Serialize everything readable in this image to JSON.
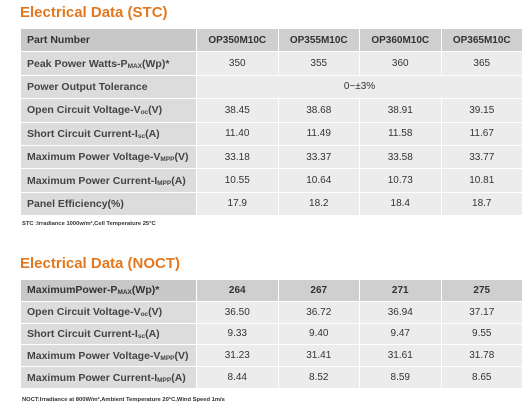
{
  "stc": {
    "title": "Electrical Data (STC)",
    "header": {
      "label": "Part Number",
      "models": [
        "OP350M10C",
        "OP355M10C",
        "OP360M10C",
        "OP365M10C"
      ]
    },
    "rows": [
      {
        "label_pre": "Peak Power Watts-P",
        "label_sub": "MAX",
        "label_post": "(Wp)*",
        "values": [
          "350",
          "355",
          "360",
          "365"
        ]
      },
      {
        "label_pre": "Power Output Tolerance",
        "label_sub": "",
        "label_post": "",
        "merged": "0~±3%"
      },
      {
        "label_pre": "Open Circuit Voltage-V",
        "label_sub": "oc",
        "label_post": "(V)",
        "values": [
          "38.45",
          "38.68",
          "38.91",
          "39.15"
        ]
      },
      {
        "label_pre": "Short Circuit Current-I",
        "label_sub": "sc",
        "label_post": "(A)",
        "values": [
          "11.40",
          "11.49",
          "11.58",
          "11.67"
        ]
      },
      {
        "label_pre": "Maximum Power Voltage-V",
        "label_sub": "MPP",
        "label_post": "(V)",
        "values": [
          "33.18",
          "33.37",
          "33.58",
          "33.77"
        ]
      },
      {
        "label_pre": "Maximum Power Current-I",
        "label_sub": "MPP",
        "label_post": "(A)",
        "values": [
          "10.55",
          "10.64",
          "10.73",
          "10.81"
        ]
      },
      {
        "label_pre": "Panel Efficiency(%)",
        "label_sub": "",
        "label_post": "",
        "values": [
          "17.9",
          "18.2",
          "18.4",
          "18.7"
        ]
      }
    ],
    "note": "STC :Irradiance 1000w/m²,Cell Temperature 25°C"
  },
  "noct": {
    "title": "Electrical Data (NOCT)",
    "header": {
      "label_pre": "MaximumPower-P",
      "label_sub": "MAX",
      "label_post": "(Wp)*",
      "values": [
        "264",
        "267",
        "271",
        "275"
      ]
    },
    "rows": [
      {
        "label_pre": "Open Circuit Voltage-V",
        "label_sub": "oc",
        "label_post": "(V)",
        "values": [
          "36.50",
          "36.72",
          "36.94",
          "37.17"
        ]
      },
      {
        "label_pre": "Short Circuit Current-I",
        "label_sub": "sc",
        "label_post": "(A)",
        "values": [
          "9.33",
          "9.40",
          "9.47",
          "9.55"
        ]
      },
      {
        "label_pre": "Maximum Power Voltage-V",
        "label_sub": "MPP",
        "label_post": "(V)",
        "values": [
          "31.23",
          "31.41",
          "31.61",
          "31.78"
        ]
      },
      {
        "label_pre": "Maximum Power Current-I",
        "label_sub": "MPP",
        "label_post": "(A)",
        "values": [
          "8.44",
          "8.52",
          "8.59",
          "8.65"
        ]
      }
    ],
    "note": "NOCT:Irradiance at 800W/m²,Ambient Temperature 20°C,Wind Speed 1m/s"
  }
}
